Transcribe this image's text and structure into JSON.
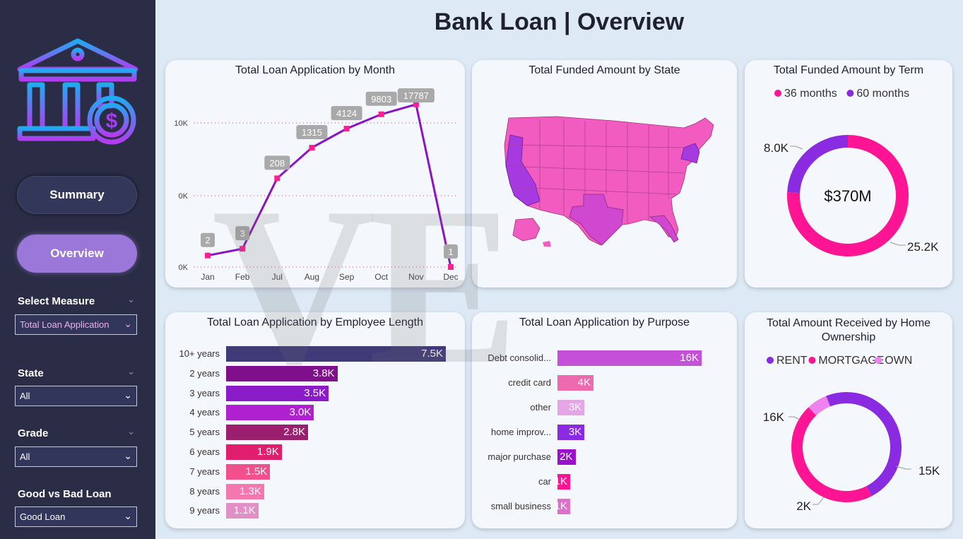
{
  "page": {
    "title": "Bank Loan | Overview"
  },
  "sidebar": {
    "nav": {
      "summary": "Summary",
      "overview": "Overview"
    },
    "filters": [
      {
        "label": "Select Measure",
        "value": "Total Loan Application"
      },
      {
        "label": "State",
        "value": "All"
      },
      {
        "label": "Grade",
        "value": "All"
      },
      {
        "label": "Good vs Bad Loan",
        "value": "Good Loan"
      }
    ]
  },
  "watermark": "VE",
  "colors": {
    "sidebar_bg": "#2a2d45",
    "accent_purple": "#9a77d8",
    "line": "#8a14c4",
    "marker": "#ff1f8e",
    "pink": "#ff1493",
    "purple": "#8a2be2",
    "light_pink": "#ee82ee"
  },
  "chart_data": [
    {
      "type": "line",
      "title": "Total Loan Application by Month",
      "categories": [
        "Jan",
        "Feb",
        "Jul",
        "Aug",
        "Sep",
        "Oct",
        "Nov",
        "Dec"
      ],
      "values": [
        2,
        3,
        208,
        1315,
        4124,
        9803,
        17787,
        1
      ],
      "data_labels": [
        "2",
        "3",
        "208",
        "1315",
        "4124",
        "9803",
        "17787",
        "1"
      ],
      "y_ticks": [
        "10K",
        "0K",
        "0K"
      ],
      "scale": "log",
      "grid": true
    },
    {
      "type": "map",
      "title": "Total Funded Amount by State"
    },
    {
      "type": "pie",
      "title": "Total Funded Amount by Term",
      "center_label": "$370M",
      "legend": [
        "36 months",
        "60 months"
      ],
      "legend_placement": "top",
      "series": [
        {
          "name": "36 months",
          "value": 25.2,
          "label": "25.2K",
          "color": "#ff1493"
        },
        {
          "name": "60 months",
          "value": 8.0,
          "label": "8.0K",
          "color": "#8a2be2"
        }
      ]
    },
    {
      "type": "bar",
      "title": "Total Loan Application by Employee Length",
      "categories": [
        "10+ years",
        "2 years",
        "3 years",
        "4 years",
        "5 years",
        "6 years",
        "7 years",
        "8 years",
        "9 years"
      ],
      "values": [
        7.5,
        3.8,
        3.5,
        3.0,
        2.8,
        1.9,
        1.5,
        1.3,
        1.1
      ],
      "data_labels": [
        "7.5K",
        "3.8K",
        "3.5K",
        "3.0K",
        "2.8K",
        "1.9K",
        "1.5K",
        "1.3K",
        "1.1K"
      ],
      "colors": [
        "#3f3a78",
        "#7f0f8a",
        "#8a1cc8",
        "#b020d0",
        "#9b1f6e",
        "#e11e6e",
        "#f0508c",
        "#f478b0",
        "#e090c4"
      ]
    },
    {
      "type": "bar",
      "title": "Total Loan Application by Purpose",
      "categories": [
        "Debt consolid...",
        "credit card",
        "other",
        "home improv...",
        "major purchase",
        "car",
        "small business"
      ],
      "values": [
        16,
        4,
        3,
        3,
        2,
        1,
        1
      ],
      "data_labels": [
        "16K",
        "4K",
        "3K",
        "3K",
        "2K",
        "1K",
        "1K"
      ],
      "colors": [
        "#c54fd8",
        "#ee6aae",
        "#e4a6e6",
        "#8a2be2",
        "#9a10cc",
        "#ff1493",
        "#dd70c8"
      ]
    },
    {
      "type": "pie",
      "title": "Total Amount Received by Home Ownership",
      "legend": [
        "RENT",
        "MORTGAGE",
        "OWN"
      ],
      "legend_placement": "top",
      "series": [
        {
          "name": "RENT",
          "value": 16,
          "label": "16K",
          "color": "#8a2be2"
        },
        {
          "name": "MORTGAGE",
          "value": 15,
          "label": "15K",
          "color": "#ff1493"
        },
        {
          "name": "OWN",
          "value": 2,
          "label": "2K",
          "color": "#ee82ee"
        }
      ]
    }
  ]
}
